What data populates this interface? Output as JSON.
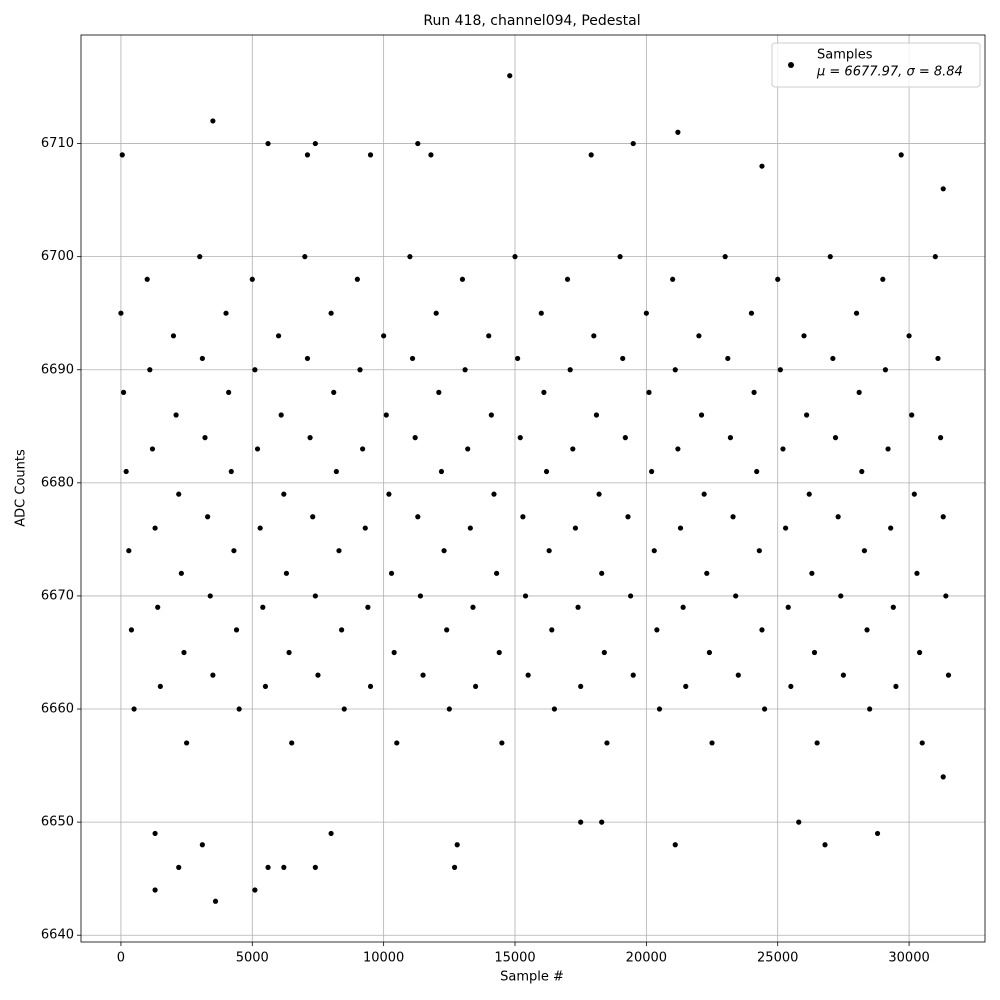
{
  "chart_data": {
    "type": "scatter",
    "title": "Run 418, channel094, Pedestal",
    "x_label": "Sample #",
    "y_label": "ADC Counts",
    "xlim": [
      -1520,
      32890
    ],
    "ylim": [
      6639.4,
      6719.6
    ],
    "xticks": [
      0,
      5000,
      10000,
      15000,
      20000,
      25000,
      30000
    ],
    "yticks": [
      6640,
      6650,
      6660,
      6670,
      6680,
      6690,
      6700,
      6710
    ],
    "grid": true,
    "legend_position": "upper right",
    "legend_note": "μ = 6677.97, σ = 8.84",
    "series": [
      {
        "name": "Samples",
        "color": "#000000",
        "x": [
          0,
          100,
          200,
          300,
          400,
          500,
          1000,
          1100,
          1200,
          1300,
          1400,
          1500,
          2000,
          2100,
          2200,
          2300,
          2400,
          2500,
          3000,
          3100,
          3200,
          3300,
          3400,
          3500,
          4000,
          4100,
          4200,
          4300,
          4400,
          4500,
          5000,
          5100,
          5200,
          5300,
          5400,
          5500,
          6000,
          6100,
          6200,
          6300,
          6400,
          6500,
          7000,
          7100,
          7200,
          7300,
          7400,
          7500,
          8000,
          8100,
          8200,
          8300,
          8400,
          8500,
          9000,
          9100,
          9200,
          9300,
          9400,
          9500,
          10000,
          10100,
          10200,
          10300,
          10400,
          10500,
          11000,
          11100,
          11200,
          11300,
          11400,
          11500,
          12000,
          12100,
          12200,
          12300,
          12400,
          12500,
          13000,
          13100,
          13200,
          13300,
          13400,
          13500,
          14000,
          14100,
          14200,
          14300,
          14400,
          14500,
          15000,
          15100,
          15200,
          15300,
          15400,
          15500,
          16000,
          16100,
          16200,
          16300,
          16400,
          16500,
          17000,
          17100,
          17200,
          17300,
          17400,
          17500,
          18000,
          18100,
          18200,
          18300,
          18400,
          18500,
          19000,
          19100,
          19200,
          19300,
          19400,
          19500,
          20000,
          20100,
          20200,
          20300,
          20400,
          20500,
          21000,
          21100,
          21200,
          21300,
          21400,
          21500,
          22000,
          22100,
          22200,
          22300,
          22400,
          22500,
          23000,
          23100,
          23200,
          23300,
          23400,
          23500,
          24000,
          24100,
          24200,
          24300,
          24400,
          24500,
          25000,
          25100,
          25200,
          25300,
          25400,
          25500,
          26000,
          26100,
          26200,
          26300,
          26400,
          26500,
          27000,
          27100,
          27200,
          27300,
          27400,
          27500,
          28000,
          28100,
          28200,
          28300,
          28400,
          28500,
          29000,
          29100,
          29200,
          29300,
          29400,
          29500,
          30000,
          30100,
          30200,
          30300,
          30400,
          30500,
          31000,
          31100,
          31200,
          31300,
          31400,
          31500,
          50,
          1300,
          1300,
          2200,
          3100,
          3500,
          3600,
          5100,
          5600,
          5600,
          6200,
          7100,
          7400,
          7400,
          8000,
          9500,
          11300,
          11800,
          12700,
          12800,
          14800,
          17500,
          17900,
          18300,
          19500,
          21100,
          21200,
          24400,
          25800,
          26800,
          28800,
          29700,
          31300,
          31300
        ],
        "values": [
          6695,
          6688,
          6681,
          6674,
          6667,
          6660,
          6698,
          6690,
          6683,
          6676,
          6669,
          6662,
          6693,
          6686,
          6679,
          6672,
          6665,
          6657,
          6700,
          6691,
          6684,
          6677,
          6670,
          6663,
          6695,
          6688,
          6681,
          6674,
          6667,
          6660,
          6698,
          6690,
          6683,
          6676,
          6669,
          6662,
          6693,
          6686,
          6679,
          6672,
          6665,
          6657,
          6700,
          6691,
          6684,
          6677,
          6670,
          6663,
          6695,
          6688,
          6681,
          6674,
          6667,
          6660,
          6698,
          6690,
          6683,
          6676,
          6669,
          6662,
          6693,
          6686,
          6679,
          6672,
          6665,
          6657,
          6700,
          6691,
          6684,
          6677,
          6670,
          6663,
          6695,
          6688,
          6681,
          6674,
          6667,
          6660,
          6698,
          6690,
          6683,
          6676,
          6669,
          6662,
          6693,
          6686,
          6679,
          6672,
          6665,
          6657,
          6700,
          6691,
          6684,
          6677,
          6670,
          6663,
          6695,
          6688,
          6681,
          6674,
          6667,
          6660,
          6698,
          6690,
          6683,
          6676,
          6669,
          6662,
          6693,
          6686,
          6679,
          6672,
          6665,
          6657,
          6700,
          6691,
          6684,
          6677,
          6670,
          6663,
          6695,
          6688,
          6681,
          6674,
          6667,
          6660,
          6698,
          6690,
          6683,
          6676,
          6669,
          6662,
          6693,
          6686,
          6679,
          6672,
          6665,
          6657,
          6700,
          6691,
          6684,
          6677,
          6670,
          6663,
          6695,
          6688,
          6681,
          6674,
          6667,
          6660,
          6698,
          6690,
          6683,
          6676,
          6669,
          6662,
          6693,
          6686,
          6679,
          6672,
          6665,
          6657,
          6700,
          6691,
          6684,
          6677,
          6670,
          6663,
          6695,
          6688,
          6681,
          6674,
          6667,
          6660,
          6698,
          6690,
          6683,
          6676,
          6669,
          6662,
          6693,
          6686,
          6679,
          6672,
          6665,
          6657,
          6700,
          6691,
          6684,
          6677,
          6670,
          6663,
          6709,
          6644,
          6649,
          6646,
          6648,
          6712,
          6643,
          6644,
          6710,
          6646,
          6646,
          6709,
          6710,
          6646,
          6649,
          6709,
          6710,
          6709,
          6646,
          6648,
          6716,
          6650,
          6709,
          6650,
          6710,
          6648,
          6711,
          6708,
          6650,
          6648,
          6649,
          6709,
          6706,
          6654
        ]
      }
    ]
  }
}
